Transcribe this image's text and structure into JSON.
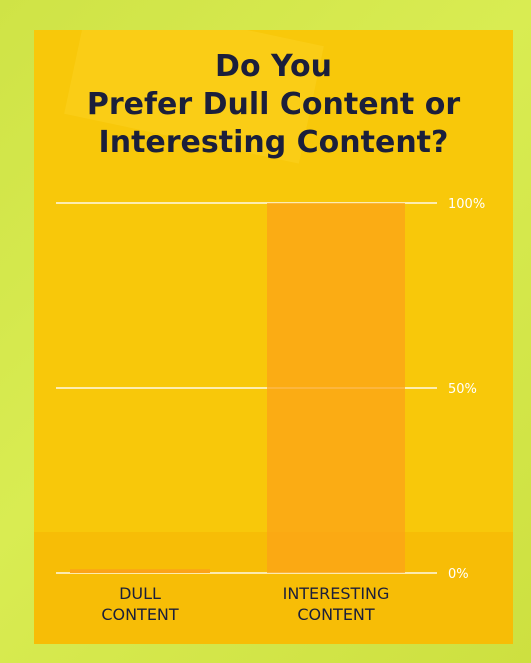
{
  "colors": {
    "background": "#d4e84a",
    "panel": "#f8c80a",
    "bar": "#fca318",
    "title": "#1b1f3b",
    "grid": "#ffffff"
  },
  "chart_data": {
    "type": "bar",
    "title": "Do You\nPrefer Dull Content or\nInteresting Content?",
    "categories": [
      "DULL\nCONTENT",
      "INTERESTING\nCONTENT"
    ],
    "values": [
      1,
      100
    ],
    "ylim": [
      0,
      100
    ],
    "yticks": [
      100,
      50,
      0
    ],
    "ytick_labels": [
      "100%",
      "50%",
      "0%"
    ],
    "ylabel": "",
    "xlabel": "",
    "grid": true
  }
}
